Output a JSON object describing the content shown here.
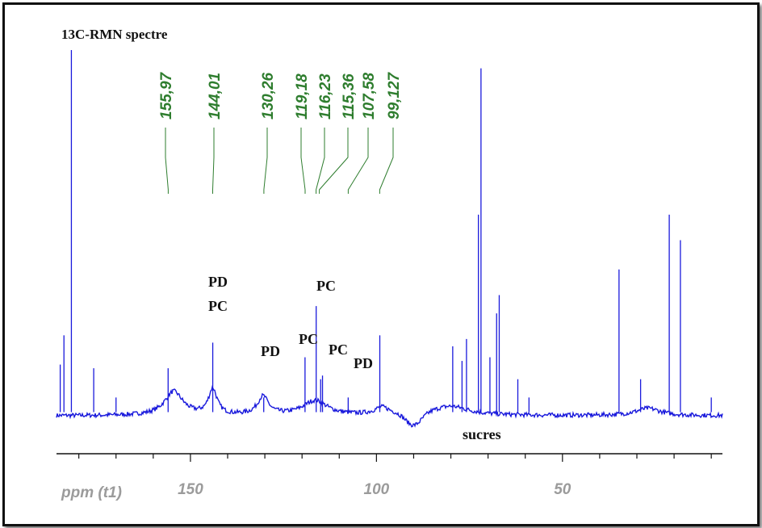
{
  "chart_data": {
    "type": "line",
    "title": "13C-RMN spectre",
    "xlabel": "ppm (t1)",
    "xlim": [
      186,
      7
    ],
    "x_reversed": true,
    "x_ticks": [
      150,
      100,
      50
    ],
    "x_tick_labels": [
      "150",
      "100",
      "50"
    ],
    "grid": false,
    "line_color": "#1a1adc",
    "label_color": "#2e7d2e",
    "peak_labels": [
      {
        "ppm": 155.97,
        "text": "155,97"
      },
      {
        "ppm": 144.01,
        "text": "144,01"
      },
      {
        "ppm": 130.26,
        "text": "130,26"
      },
      {
        "ppm": 119.18,
        "text": "119,18"
      },
      {
        "ppm": 116.23,
        "text": "116,23"
      },
      {
        "ppm": 115.36,
        "text": "115,36"
      },
      {
        "ppm": 107.58,
        "text": "107,58"
      },
      {
        "ppm": 99.127,
        "text": "99,127"
      }
    ],
    "annotations": [
      {
        "ppm": 144.0,
        "lines": [
          "PD",
          "PC"
        ]
      },
      {
        "ppm": 130.3,
        "lines": [
          "PD"
        ]
      },
      {
        "ppm": 119.2,
        "lines": [
          "PC"
        ]
      },
      {
        "ppm": 116.2,
        "lines": [
          "PC"
        ]
      },
      {
        "ppm": 112.5,
        "lines": [
          "PC"
        ]
      },
      {
        "ppm": 107.6,
        "lines": [
          "PD"
        ]
      },
      {
        "ppm": 73.0,
        "lines": [
          "sucres"
        ]
      }
    ],
    "sharp_peaks": [
      {
        "ppm": 182.0,
        "intensity": 1.0
      },
      {
        "ppm": 184.0,
        "intensity": 0.22
      },
      {
        "ppm": 185.0,
        "intensity": 0.14
      },
      {
        "ppm": 176.0,
        "intensity": 0.13
      },
      {
        "ppm": 170.0,
        "intensity": 0.05
      },
      {
        "ppm": 156.0,
        "intensity": 0.13
      },
      {
        "ppm": 144.0,
        "intensity": 0.2
      },
      {
        "ppm": 130.3,
        "intensity": 0.05
      },
      {
        "ppm": 119.2,
        "intensity": 0.16
      },
      {
        "ppm": 116.2,
        "intensity": 0.3
      },
      {
        "ppm": 115.0,
        "intensity": 0.1
      },
      {
        "ppm": 114.5,
        "intensity": 0.11
      },
      {
        "ppm": 107.6,
        "intensity": 0.05
      },
      {
        "ppm": 99.1,
        "intensity": 0.22
      },
      {
        "ppm": 79.5,
        "intensity": 0.19
      },
      {
        "ppm": 77.0,
        "intensity": 0.15
      },
      {
        "ppm": 75.8,
        "intensity": 0.21
      },
      {
        "ppm": 72.6,
        "intensity": 0.55
      },
      {
        "ppm": 71.9,
        "intensity": 0.95
      },
      {
        "ppm": 69.5,
        "intensity": 0.16
      },
      {
        "ppm": 67.7,
        "intensity": 0.28
      },
      {
        "ppm": 67.0,
        "intensity": 0.33
      },
      {
        "ppm": 62.0,
        "intensity": 0.1
      },
      {
        "ppm": 59.0,
        "intensity": 0.05
      },
      {
        "ppm": 34.8,
        "intensity": 0.4
      },
      {
        "ppm": 29.0,
        "intensity": 0.1
      },
      {
        "ppm": 21.3,
        "intensity": 0.55
      },
      {
        "ppm": 18.3,
        "intensity": 0.48
      },
      {
        "ppm": 10.0,
        "intensity": 0.05
      }
    ],
    "broad_bands": [
      {
        "ppm": 154.5,
        "width": 3.0,
        "intensity": 0.065
      },
      {
        "ppm": 144.0,
        "width": 1.4,
        "intensity": 0.07
      },
      {
        "ppm": 130.5,
        "width": 1.8,
        "intensity": 0.05
      },
      {
        "ppm": 116.5,
        "width": 4.0,
        "intensity": 0.04
      },
      {
        "ppm": 98.5,
        "width": 2.5,
        "intensity": 0.02
      },
      {
        "ppm": 80.0,
        "width": 6.0,
        "intensity": 0.025
      },
      {
        "ppm": 27.0,
        "width": 4.0,
        "intensity": 0.02
      }
    ],
    "troughs": [
      {
        "ppm": 90.0,
        "width": 3.0,
        "depth": 0.035
      }
    ]
  }
}
